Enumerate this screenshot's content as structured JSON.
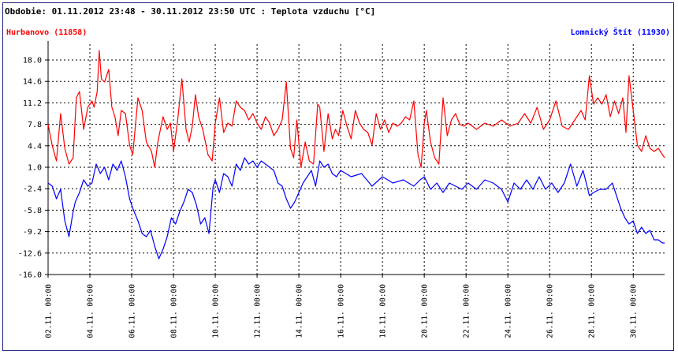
{
  "title": "Obdobie: 01.11.2012 23:48 - 30.11.2012 23:50 UTC : Teplota vzduchu [°C]",
  "colors": {
    "series1": "#ff0000",
    "series2": "#0000ff",
    "frame": "#1f1f7a",
    "grid": "#000000"
  },
  "chart_data": {
    "type": "line",
    "title": "Obdobie: 01.11.2012 23:48 - 30.11.2012 23:50 UTC : Teplota vzduchu [°C]",
    "xlabel": "",
    "ylabel": "",
    "xlim": [
      2.0,
      31.5
    ],
    "ylim": [
      -16.0,
      20.5
    ],
    "grid": true,
    "legend": "top",
    "y_ticks": [
      "18.0",
      "14.6",
      "11.2",
      "7.8",
      "4.4",
      "1.0",
      "-2.4",
      "-5.8",
      "-9.2",
      "-12.6",
      "-16.0"
    ],
    "y_tick_values": [
      18.0,
      14.6,
      11.2,
      7.8,
      4.4,
      1.0,
      -2.4,
      -5.8,
      -9.2,
      -12.6,
      -16.0
    ],
    "x_ticks": [
      "02.11. 00:00",
      "04.11. 00:00",
      "06.11. 00:00",
      "08.11. 00:00",
      "10.11. 00:00",
      "12.11. 00:00",
      "14.11. 00:00",
      "16.11. 00:00",
      "18.11. 00:00",
      "20.11. 00:00",
      "22.11. 00:00",
      "24.11. 00:00",
      "26.11. 00:00",
      "28.11. 00:00",
      "30.11. 00:00"
    ],
    "x_tick_values": [
      2,
      4,
      6,
      8,
      10,
      12,
      14,
      16,
      18,
      20,
      22,
      24,
      26,
      28,
      30
    ],
    "series": [
      {
        "name": "Hurbanovo (11858)",
        "color": "#ff0000",
        "x": [
          2.0,
          2.2,
          2.4,
          2.6,
          2.8,
          3.0,
          3.2,
          3.35,
          3.5,
          3.7,
          3.9,
          4.1,
          4.2,
          4.35,
          4.45,
          4.55,
          4.7,
          4.9,
          5.05,
          5.2,
          5.35,
          5.5,
          5.7,
          5.9,
          6.05,
          6.3,
          6.5,
          6.7,
          6.95,
          7.1,
          7.25,
          7.5,
          7.7,
          7.85,
          8.0,
          8.2,
          8.4,
          8.6,
          8.75,
          8.9,
          9.05,
          9.2,
          9.4,
          9.65,
          9.85,
          10.0,
          10.2,
          10.4,
          10.6,
          10.8,
          11.0,
          11.2,
          11.4,
          11.6,
          11.8,
          12.0,
          12.2,
          12.4,
          12.6,
          12.8,
          13.0,
          13.2,
          13.4,
          13.6,
          13.75,
          13.9,
          14.1,
          14.3,
          14.5,
          14.7,
          14.9,
          15.0,
          15.2,
          15.4,
          15.6,
          15.75,
          15.9,
          16.1,
          16.3,
          16.5,
          16.7,
          16.9,
          17.1,
          17.3,
          17.5,
          17.7,
          17.9,
          18.1,
          18.3,
          18.5,
          18.7,
          18.9,
          19.1,
          19.3,
          19.5,
          19.7,
          19.85,
          20.0,
          20.1,
          20.3,
          20.5,
          20.7,
          20.9,
          21.1,
          21.3,
          21.5,
          21.7,
          21.9,
          22.1,
          22.5,
          22.9,
          23.3,
          23.7,
          24.1,
          24.5,
          24.8,
          25.1,
          25.4,
          25.7,
          26.0,
          26.3,
          26.6,
          26.9,
          27.1,
          27.3,
          27.5,
          27.7,
          27.9,
          28.1,
          28.3,
          28.5,
          28.7,
          28.9,
          29.1,
          29.3,
          29.5,
          29.65,
          29.8,
          30.0,
          30.2,
          30.4,
          30.6,
          30.8,
          31.0,
          31.2,
          31.4,
          31.5
        ],
        "y": [
          7.8,
          4.4,
          2.0,
          9.5,
          4.0,
          1.5,
          2.5,
          12.0,
          13.0,
          7.0,
          10.5,
          11.5,
          10.5,
          13.0,
          19.5,
          15.0,
          14.5,
          16.5,
          10.5,
          9.0,
          6.0,
          10.0,
          9.5,
          4.5,
          3.0,
          12.0,
          10.0,
          5.0,
          3.5,
          1.0,
          5.0,
          9.0,
          7.0,
          8.0,
          3.5,
          8.5,
          15.0,
          7.0,
          5.0,
          7.5,
          12.5,
          9.0,
          7.0,
          3.0,
          2.0,
          8.0,
          12.0,
          6.5,
          8.0,
          7.5,
          11.5,
          10.5,
          10.0,
          8.5,
          9.5,
          8.0,
          7.0,
          9.0,
          8.0,
          6.0,
          7.0,
          8.5,
          14.5,
          4.0,
          2.5,
          8.5,
          1.0,
          5.0,
          2.0,
          1.5,
          11.0,
          10.5,
          3.5,
          9.5,
          5.5,
          7.0,
          6.0,
          10.0,
          7.5,
          5.5,
          10.0,
          8.0,
          7.0,
          6.5,
          4.5,
          9.5,
          7.0,
          8.5,
          6.5,
          8.0,
          7.5,
          8.0,
          9.0,
          8.5,
          11.5,
          3.0,
          1.0,
          8.0,
          10.0,
          5.0,
          2.5,
          1.5,
          12.0,
          6.0,
          8.5,
          9.5,
          7.8,
          7.5,
          8.0,
          7.0,
          8.0,
          7.5,
          8.5,
          7.5,
          8.0,
          9.5,
          8.0,
          10.5,
          7.0,
          8.5,
          11.5,
          7.5,
          7.0,
          8.0,
          9.0,
          10.0,
          8.5,
          15.5,
          11.0,
          12.0,
          11.0,
          12.5,
          9.0,
          11.5,
          9.5,
          12.0,
          6.5,
          15.5,
          10.0,
          4.5,
          3.5,
          6.0,
          4.0,
          3.5,
          4.0,
          3.0,
          2.5
        ]
      },
      {
        "name": "Lomnický Štít (11930)",
        "color": "#0000ff",
        "x": [
          2.0,
          2.2,
          2.4,
          2.6,
          2.8,
          3.0,
          3.2,
          3.3,
          3.5,
          3.7,
          3.9,
          4.1,
          4.3,
          4.5,
          4.7,
          4.9,
          5.1,
          5.3,
          5.5,
          5.7,
          5.9,
          6.05,
          6.3,
          6.5,
          6.7,
          6.9,
          7.1,
          7.3,
          7.5,
          7.7,
          7.9,
          8.1,
          8.3,
          8.5,
          8.7,
          8.9,
          9.1,
          9.3,
          9.5,
          9.7,
          9.9,
          10.0,
          10.2,
          10.4,
          10.6,
          10.8,
          11.0,
          11.2,
          11.4,
          11.6,
          11.8,
          12.0,
          12.2,
          12.4,
          12.6,
          12.8,
          13.0,
          13.2,
          13.4,
          13.6,
          13.8,
          14.0,
          14.2,
          14.4,
          14.6,
          14.8,
          15.0,
          15.2,
          15.4,
          15.6,
          15.8,
          16.0,
          16.5,
          17.0,
          17.5,
          18.0,
          18.5,
          19.0,
          19.5,
          19.8,
          20.0,
          20.3,
          20.6,
          20.9,
          21.2,
          21.5,
          21.8,
          22.1,
          22.5,
          22.9,
          23.3,
          23.7,
          24.0,
          24.3,
          24.6,
          24.9,
          25.2,
          25.5,
          25.8,
          26.1,
          26.4,
          26.7,
          27.0,
          27.3,
          27.6,
          27.9,
          28.1,
          28.4,
          28.7,
          29.0,
          29.2,
          29.4,
          29.6,
          29.8,
          30.0,
          30.2,
          30.4,
          30.6,
          30.8,
          31.0,
          31.2,
          31.4,
          31.5
        ],
        "y": [
          -1.5,
          -2.0,
          -4.0,
          -2.5,
          -7.5,
          -10.0,
          -6.0,
          -4.5,
          -3.0,
          -1.0,
          -2.0,
          -1.5,
          1.5,
          0.0,
          1.0,
          -1.0,
          1.5,
          0.5,
          2.0,
          -0.5,
          -4.0,
          -5.5,
          -7.5,
          -9.5,
          -10.0,
          -9.0,
          -11.5,
          -13.5,
          -12.0,
          -10.0,
          -7.0,
          -8.0,
          -6.0,
          -4.5,
          -2.5,
          -3.0,
          -5.0,
          -8.0,
          -7.0,
          -9.5,
          -2.0,
          -1.0,
          -3.0,
          0.0,
          -0.5,
          -2.0,
          1.5,
          0.5,
          2.5,
          1.5,
          2.0,
          1.0,
          2.0,
          1.5,
          1.0,
          0.5,
          -1.5,
          -2.0,
          -4.0,
          -5.5,
          -4.5,
          -3.0,
          -1.5,
          -0.5,
          0.5,
          -2.0,
          2.0,
          1.0,
          1.5,
          0.0,
          -0.5,
          0.5,
          -0.5,
          0.0,
          -2.0,
          -0.5,
          -1.5,
          -1.0,
          -2.0,
          -1.0,
          -0.5,
          -2.5,
          -1.5,
          -3.0,
          -1.5,
          -2.0,
          -2.5,
          -1.5,
          -2.5,
          -1.0,
          -1.5,
          -2.5,
          -4.5,
          -1.5,
          -2.5,
          -1.0,
          -2.5,
          -0.5,
          -2.5,
          -1.5,
          -3.0,
          -1.5,
          1.5,
          -2.0,
          0.5,
          -3.5,
          -3.0,
          -2.5,
          -2.5,
          -1.5,
          -3.5,
          -5.5,
          -7.0,
          -8.0,
          -7.5,
          -9.5,
          -8.5,
          -9.5,
          -9.0,
          -10.5,
          -10.5,
          -11.0,
          -11.0
        ]
      }
    ]
  }
}
